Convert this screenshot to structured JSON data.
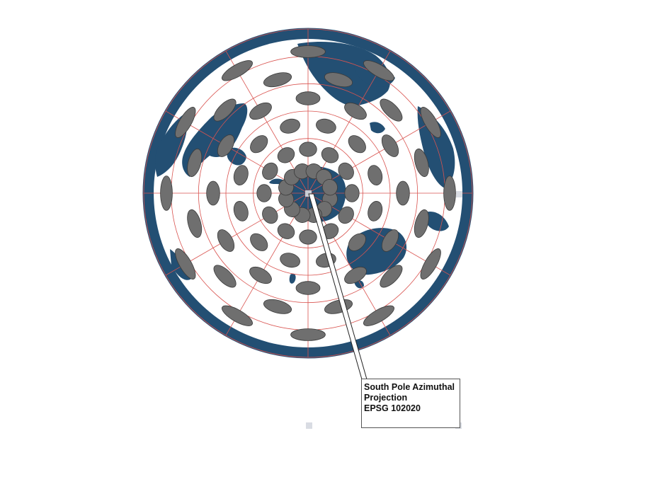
{
  "map": {
    "projection_label_line1": "South Pole Azimuthal",
    "projection_label_line2": "Projection",
    "projection_label_line3": "EPSG 102020",
    "center": "South Pole",
    "graticule_rings_deg": [
      15,
      30,
      45,
      60,
      75,
      90
    ],
    "meridian_step_deg": 30,
    "indicatrix_rings": [
      {
        "ring": 1,
        "count": 12
      },
      {
        "ring": 2,
        "count": 12
      },
      {
        "ring": 3,
        "count": 12
      },
      {
        "ring": 4,
        "count": 12
      },
      {
        "ring": 5,
        "count": 12
      },
      {
        "ring": 6,
        "count": 12
      }
    ]
  },
  "colors": {
    "ocean": "#ffffff",
    "land": "#234f73",
    "graticule": "#d9534f",
    "indicatrix_fill": "#6f6f6f",
    "indicatrix_stroke": "#3a3a3a",
    "leader": "#222222",
    "selection_handle": "#d9dce3"
  }
}
